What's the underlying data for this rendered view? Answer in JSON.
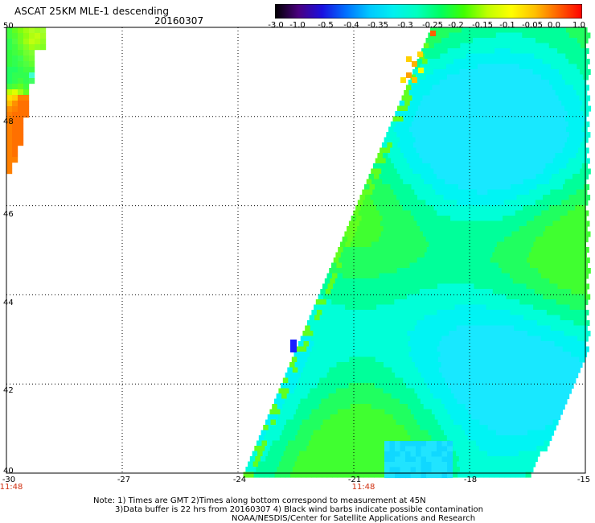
{
  "header": {
    "title": "ASCAT 25KM MLE-1 descending",
    "date": "20160307"
  },
  "colorbar": {
    "tick_labels": [
      "-3.0",
      "-1.0",
      "-0.5",
      "-0.4",
      "-0.35",
      "-0.3",
      "-0.25",
      "-0.2",
      "-0.15",
      "-0.1",
      "-0.05",
      "0.0",
      "1.0"
    ],
    "colors": [
      "#000000",
      "#4a0080",
      "#1a10e0",
      "#0070ff",
      "#00c8ff",
      "#00f0f0",
      "#00ffc0",
      "#00ff60",
      "#40ff00",
      "#c0ff00",
      "#ffff00",
      "#ffc000",
      "#ff6000",
      "#ff0000"
    ]
  },
  "axes": {
    "lat_labels": [
      "50",
      "48",
      "46",
      "44",
      "42",
      "40"
    ],
    "lon_labels": [
      "-30",
      "-27",
      "-24",
      "-21",
      "-18",
      "-15"
    ],
    "time_labels": [
      "11:48",
      "11:48"
    ],
    "lat_range": [
      40,
      50
    ],
    "lon_range": [
      -30,
      -15
    ]
  },
  "notes": {
    "line1": "Note: 1) Times are GMT 2)Times along bottom correspond to measurement at 45N",
    "line2": "3)Data buffer is 22 hrs from 20160307 4) Black wind barbs indicate possible contamination",
    "line3": "NOAA/NESDIS/Center for Satellite Applications and Research"
  }
}
